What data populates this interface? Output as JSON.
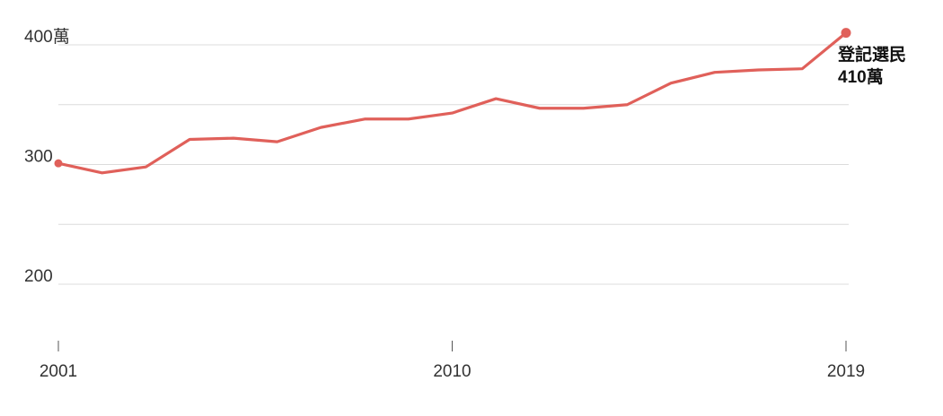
{
  "chart_data": {
    "type": "line",
    "title": "",
    "xlabel": "",
    "ylabel": "",
    "x": [
      2001,
      2002,
      2003,
      2004,
      2005,
      2006,
      2007,
      2008,
      2009,
      2010,
      2011,
      2012,
      2013,
      2014,
      2015,
      2016,
      2017,
      2018,
      2019
    ],
    "series": [
      {
        "values": [
          301,
          293,
          298,
          321,
          322,
          319,
          331,
          338,
          338,
          343,
          355,
          347,
          347,
          350,
          368,
          377,
          379,
          380,
          410
        ]
      }
    ],
    "ylim": [
      150,
      410
    ],
    "xlim": [
      2001,
      2019
    ],
    "y_ticks": [
      {
        "value": 400,
        "label": "400萬"
      },
      {
        "value": 300,
        "label": "300"
      },
      {
        "value": 200,
        "label": "200"
      }
    ],
    "y_minor_gridlines": [
      350,
      250
    ],
    "x_ticks": [
      {
        "value": 2001,
        "label": "2001"
      },
      {
        "value": 2010,
        "label": "2010"
      },
      {
        "value": 2019,
        "label": "2019"
      }
    ],
    "grid": true,
    "line_color": "#e0605a",
    "annotation": {
      "line1": "登記選民",
      "line2": "410萬"
    }
  }
}
